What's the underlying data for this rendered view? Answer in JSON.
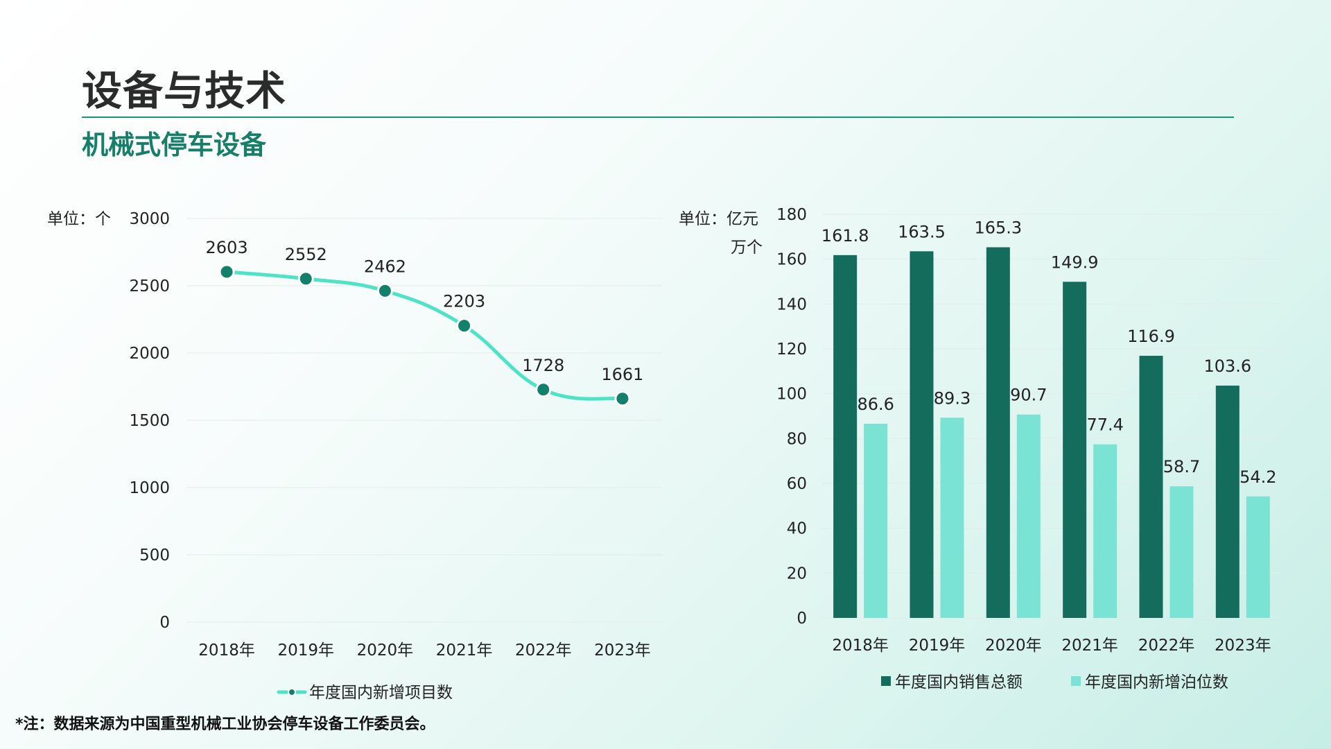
{
  "header": {
    "title": "设备与技术",
    "subtitle": "机械式停车设备"
  },
  "footer": {
    "note": "*注：数据来源为中国重型机械工业协会停车设备工作委员会。"
  },
  "colors": {
    "accent": "#177f69",
    "line": "#4de3c6",
    "marker": "#12806a",
    "bar_dark": "#136c5c",
    "bar_light": "#7be3d3",
    "grid": "#e2ece9"
  },
  "chart_data": [
    {
      "type": "line",
      "unit_label": "单位：个",
      "categories": [
        "2018年",
        "2019年",
        "2020年",
        "2021年",
        "2022年",
        "2023年"
      ],
      "series": [
        {
          "name": "年度国内新增项目数",
          "values": [
            2603,
            2552,
            2462,
            2203,
            1728,
            1661
          ]
        }
      ],
      "ylim": [
        0,
        3000
      ],
      "yticks": [
        0,
        500,
        1000,
        1500,
        2000,
        2500,
        3000
      ],
      "grid": true,
      "legend": "bottom"
    },
    {
      "type": "bar",
      "unit_label_1": "单位：亿元",
      "unit_label_2": "万个",
      "categories": [
        "2018年",
        "2019年",
        "2020年",
        "2021年",
        "2022年",
        "2023年"
      ],
      "series": [
        {
          "name": "年度国内销售总额",
          "values": [
            161.8,
            163.5,
            165.3,
            149.9,
            116.9,
            103.6
          ]
        },
        {
          "name": "年度国内新增泊位数",
          "values": [
            86.6,
            89.3,
            90.7,
            77.4,
            58.7,
            54.2
          ]
        }
      ],
      "ylim": [
        0,
        180
      ],
      "yticks": [
        0,
        20,
        40,
        60,
        80,
        100,
        120,
        140,
        160,
        180
      ],
      "grid": true,
      "legend": "bottom"
    }
  ]
}
